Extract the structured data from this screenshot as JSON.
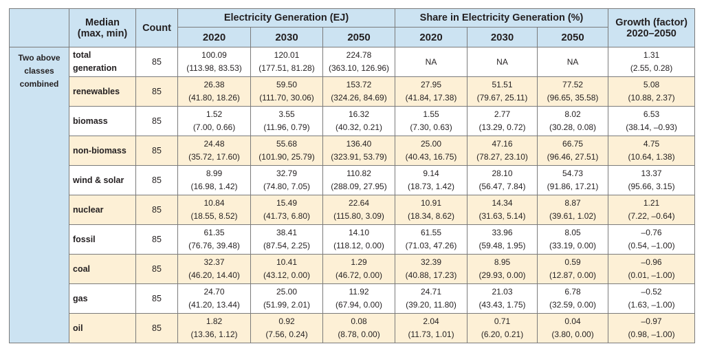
{
  "header": {
    "median_line1": "Median",
    "median_line2": "(max, min)",
    "count": "Count",
    "electricity_generation": "Electricity Generation (EJ)",
    "share_generation": "Share in Electricity Generation (%)",
    "growth_line1": "Growth (factor)",
    "growth_line2": "2020–2050",
    "years_gen": [
      "2020",
      "2030",
      "2050"
    ],
    "years_share": [
      "2020",
      "2030",
      "2050"
    ]
  },
  "group_label": [
    "Two above",
    "classes",
    "combined"
  ],
  "rows": [
    {
      "label": [
        "total",
        "generation"
      ],
      "count": "85",
      "gen": [
        [
          "100.09",
          "(113.98, 83.53)"
        ],
        [
          "120.01",
          "(177.51, 81.28)"
        ],
        [
          "224.78",
          "(363.10, 126.96)"
        ]
      ],
      "share": [
        [
          "NA",
          ""
        ],
        [
          "NA",
          ""
        ],
        [
          "NA",
          ""
        ]
      ],
      "growth": [
        "1.31",
        "(2.55, 0.28)"
      ]
    },
    {
      "label": [
        "renewables"
      ],
      "count": "85",
      "gen": [
        [
          "26.38",
          "(41.80, 18.26)"
        ],
        [
          "59.50",
          "(111.70, 30.06)"
        ],
        [
          "153.72",
          "(324.26, 84.69)"
        ]
      ],
      "share": [
        [
          "27.95",
          "(41.84, 17.38)"
        ],
        [
          "51.51",
          "(79.67, 25.11)"
        ],
        [
          "77.52",
          "(96.65, 35.58)"
        ]
      ],
      "growth": [
        "5.08",
        "(10.88, 2.37)"
      ]
    },
    {
      "label": [
        "biomass"
      ],
      "count": "85",
      "gen": [
        [
          "1.52",
          "(7.00, 0.66)"
        ],
        [
          "3.55",
          "(11.96, 0.79)"
        ],
        [
          "16.32",
          "(40.32, 0.21)"
        ]
      ],
      "share": [
        [
          "1.55",
          "(7.30, 0.63)"
        ],
        [
          "2.77",
          "(13.29, 0.72)"
        ],
        [
          "8.02",
          "(30.28, 0.08)"
        ]
      ],
      "growth": [
        "6.53",
        "(38.14, –0.93)"
      ]
    },
    {
      "label": [
        "non-biomass"
      ],
      "count": "85",
      "gen": [
        [
          "24.48",
          "(35.72, 17.60)"
        ],
        [
          "55.68",
          "(101.90, 25.79)"
        ],
        [
          "136.40",
          "(323.91, 53.79)"
        ]
      ],
      "share": [
        [
          "25.00",
          "(40.43, 16.75)"
        ],
        [
          "47.16",
          "(78.27, 23.10)"
        ],
        [
          "66.75",
          "(96.46, 27.51)"
        ]
      ],
      "growth": [
        "4.75",
        "(10.64, 1.38)"
      ]
    },
    {
      "label": [
        "wind & solar"
      ],
      "count": "85",
      "gen": [
        [
          "8.99",
          "(16.98, 1.42)"
        ],
        [
          "32.79",
          "(74.80, 7.05)"
        ],
        [
          "110.82",
          "(288.09, 27.95)"
        ]
      ],
      "share": [
        [
          "9.14",
          "(18.73, 1.42)"
        ],
        [
          "28.10",
          "(56.47, 7.84)"
        ],
        [
          "54.73",
          "(91.86, 17.21)"
        ]
      ],
      "growth": [
        "13.37",
        "(95.66, 3.15)"
      ]
    },
    {
      "label": [
        "nuclear"
      ],
      "count": "85",
      "gen": [
        [
          "10.84",
          "(18.55, 8.52)"
        ],
        [
          "15.49",
          "(41.73, 6.80)"
        ],
        [
          "22.64",
          "(115.80, 3.09)"
        ]
      ],
      "share": [
        [
          "10.91",
          "(18.34, 8.62)"
        ],
        [
          "14.34",
          "(31.63, 5.14)"
        ],
        [
          "8.87",
          "(39.61, 1.02)"
        ]
      ],
      "growth": [
        "1.21",
        "(7.22, –0.64)"
      ]
    },
    {
      "label": [
        "fossil"
      ],
      "count": "85",
      "gen": [
        [
          "61.35",
          "(76.76, 39.48)"
        ],
        [
          "38.41",
          "(87.54, 2.25)"
        ],
        [
          "14.10",
          "(118.12, 0.00)"
        ]
      ],
      "share": [
        [
          "61.55",
          "(71.03, 47.26)"
        ],
        [
          "33.96",
          "(59.48, 1.95)"
        ],
        [
          "8.05",
          "(33.19, 0.00)"
        ]
      ],
      "growth": [
        "–0.76",
        "(0.54, –1.00)"
      ]
    },
    {
      "label": [
        "coal"
      ],
      "count": "85",
      "gen": [
        [
          "32.37",
          "(46.20, 14.40)"
        ],
        [
          "10.41",
          "(43.12, 0.00)"
        ],
        [
          "1.29",
          "(46.72, 0.00)"
        ]
      ],
      "share": [
        [
          "32.39",
          "(40.88, 17.23)"
        ],
        [
          "8.95",
          "(29.93, 0.00)"
        ],
        [
          "0.59",
          "(12.87, 0.00)"
        ]
      ],
      "growth": [
        "–0.96",
        "(0.01, –1.00)"
      ]
    },
    {
      "label": [
        "gas"
      ],
      "count": "85",
      "gen": [
        [
          "24.70",
          "(41.20, 13.44)"
        ],
        [
          "25.00",
          "(51.99, 2.01)"
        ],
        [
          "11.92",
          "(67.94, 0.00)"
        ]
      ],
      "share": [
        [
          "24.71",
          "(39.20, 11.80)"
        ],
        [
          "21.03",
          "(43.43, 1.75)"
        ],
        [
          "6.78",
          "(32.59, 0.00)"
        ]
      ],
      "growth": [
        "–0.52",
        "(1.63, –1.00)"
      ]
    },
    {
      "label": [
        "oil"
      ],
      "count": "85",
      "gen": [
        [
          "1.82",
          "(13.36, 1.12)"
        ],
        [
          "0.92",
          "(7.56, 0.24)"
        ],
        [
          "0.08",
          "(8.78, 0.00)"
        ]
      ],
      "share": [
        [
          "2.04",
          "(11.73, 1.01)"
        ],
        [
          "0.71",
          "(6.20, 0.21)"
        ],
        [
          "0.04",
          "(3.80, 0.00)"
        ]
      ],
      "growth": [
        "–0.97",
        "(0.98, –1.00)"
      ]
    }
  ],
  "colors": {
    "header_bg": "#cce3f2",
    "alt_row_bg": "#fdf0d6",
    "white_row_bg": "#ffffff",
    "border": "#7a7a7a"
  }
}
